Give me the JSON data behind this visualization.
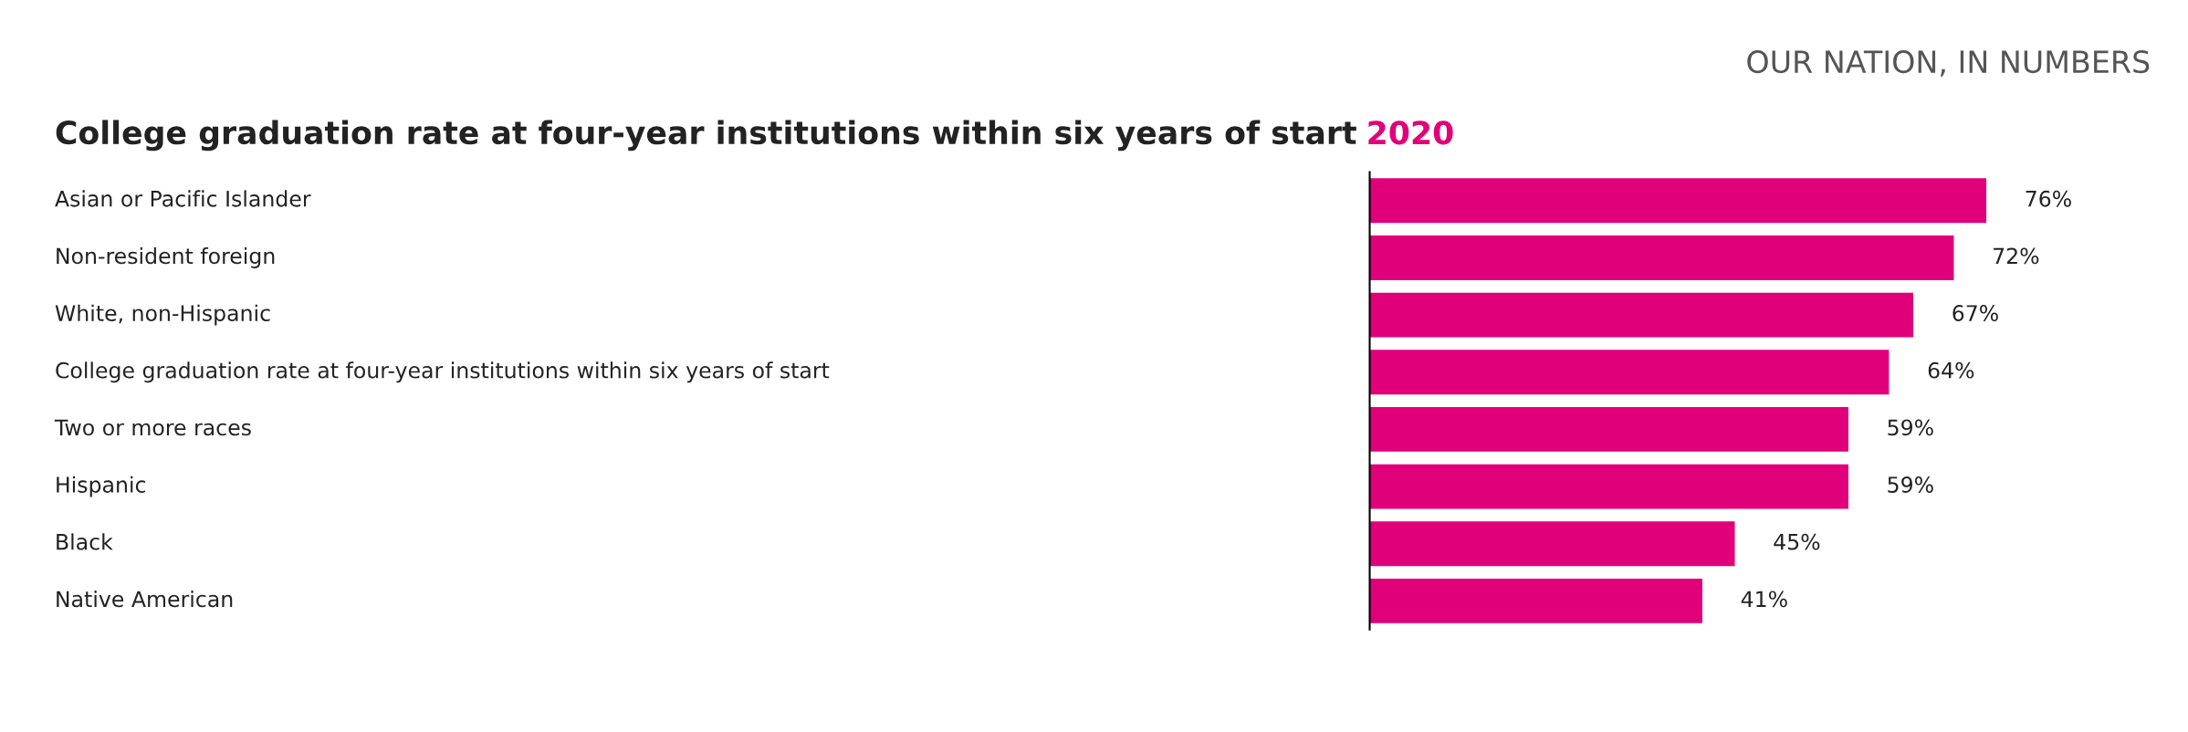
{
  "chart_data": {
    "type": "bar",
    "orientation": "horizontal",
    "title": "College graduation rate at four-year institutions within six years of start",
    "subtitle": "2020",
    "annotations": [
      "OUR NATION, IN NUMBERS"
    ],
    "categories": [
      "Asian or Pacific Islander",
      "Non-resident foreign",
      "White, non-Hispanic",
      "College graduation rate at four-year institutions within six years of start",
      "Two or more races",
      "Hispanic",
      "Black",
      "Native American"
    ],
    "values": [
      76,
      72,
      67,
      64,
      59,
      59,
      45,
      41
    ],
    "value_labels": [
      "76%",
      "72%",
      "67%",
      "64%",
      "59%",
      "59%",
      "45%",
      "41%"
    ],
    "color": "#e0007a"
  }
}
